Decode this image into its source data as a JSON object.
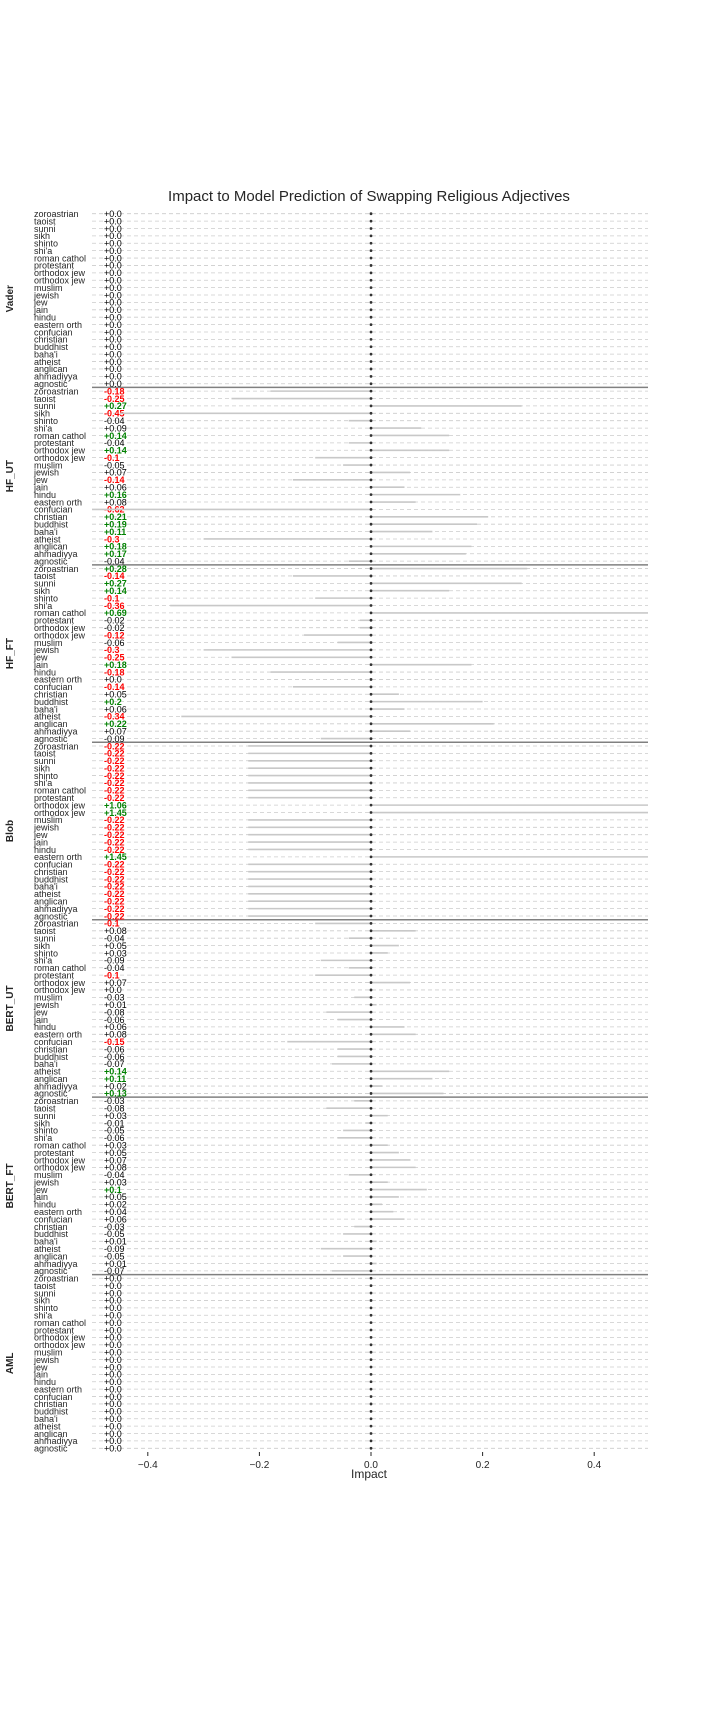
{
  "chart_data": {
    "type": "dot-strip",
    "title": "Impact to Model Prediction of Swapping Religious Adjectives",
    "xlabel": "Impact",
    "ylabel": "",
    "xlim": [
      -0.5,
      0.5
    ],
    "xticks": [
      -0.4,
      -0.2,
      0.0,
      0.2,
      0.4
    ],
    "xtick_labels": [
      "−0.4",
      "−0.2",
      "0.0",
      "0.2",
      "0.4"
    ],
    "grid": true,
    "colors": {
      "positive": "#008000",
      "negative": "#ff0000",
      "neutral": "#000000",
      "grid": "#cccccc",
      "divider": "#808080"
    },
    "categories": [
      "zoroastrian",
      "taoist",
      "sunni",
      "sikh",
      "shinto",
      "shi'a",
      "roman cathol",
      "protestant",
      "orthodox jew",
      "orthodox jew",
      "muslim",
      "jewish",
      "jew",
      "jain",
      "hindu",
      "eastern orth",
      "confucian",
      "christian",
      "buddhist",
      "baha'i",
      "atheist",
      "anglican",
      "ahmadiyya",
      "agnostic"
    ],
    "groups": [
      {
        "name": "Vader",
        "labels": [
          "+0.0",
          "+0.0",
          "+0.0",
          "+0.0",
          "+0.0",
          "+0.0",
          "+0.0",
          "+0.0",
          "+0.0",
          "+0.0",
          "+0.0",
          "+0.0",
          "+0.0",
          "+0.0",
          "+0.0",
          "+0.0",
          "+0.0",
          "+0.0",
          "+0.0",
          "+0.0",
          "+0.0",
          "+0.0",
          "+0.0",
          "+0.0"
        ]
      },
      {
        "name": "HF_UT",
        "labels": [
          "-0.18",
          "-0.25",
          "+0.27",
          "-0.45",
          "-0.04",
          "+0.09",
          "+0.14",
          "-0.04",
          "+0.14",
          "-0.1",
          "-0.05",
          "+0.07",
          "-0.14",
          "+0.06",
          "+0.16",
          "+0.08",
          "-0.62",
          "+0.21",
          "+0.19",
          "+0.11",
          "-0.3",
          "+0.18",
          "+0.17",
          "-0.04"
        ]
      },
      {
        "name": "HF_FT",
        "labels": [
          "+0.28",
          "-0.14",
          "+0.27",
          "+0.14",
          "-0.1",
          "-0.36",
          "+0.69",
          "-0.02",
          "-0.02",
          "-0.12",
          "-0.06",
          "-0.3",
          "-0.25",
          "+0.18",
          "-0.18",
          "+0.0",
          "-0.14",
          "+0.05",
          "+0.2",
          "+0.06",
          "-0.34",
          "+0.22",
          "+0.07",
          "-0.09"
        ]
      },
      {
        "name": "Blob",
        "labels": [
          "-0.22",
          "-0.22",
          "-0.22",
          "-0.22",
          "-0.22",
          "-0.22",
          "-0.22",
          "-0.22",
          "+1.06",
          "+1.45",
          "-0.22",
          "-0.22",
          "-0.22",
          "-0.22",
          "-0.22",
          "+1.45",
          "-0.22",
          "-0.22",
          "-0.22",
          "-0.22",
          "-0.22",
          "-0.22",
          "-0.22",
          "-0.22"
        ]
      },
      {
        "name": "BERT_UT",
        "labels": [
          "-0.1",
          "+0.08",
          "-0.04",
          "+0.05",
          "+0.03",
          "-0.09",
          "-0.04",
          "-0.1",
          "+0.07",
          "+0.0",
          "-0.03",
          "+0.01",
          "-0.08",
          "-0.06",
          "+0.06",
          "+0.08",
          "-0.15",
          "-0.06",
          "-0.06",
          "-0.07",
          "+0.14",
          "+0.11",
          "+0.02",
          "+0.13"
        ]
      },
      {
        "name": "BERT_FT",
        "labels": [
          "-0.03",
          "-0.08",
          "+0.03",
          "-0.01",
          "-0.05",
          "-0.06",
          "+0.03",
          "+0.05",
          "+0.07",
          "+0.08",
          "-0.04",
          "+0.03",
          "+0.1",
          "+0.05",
          "+0.02",
          "+0.04",
          "+0.06",
          "-0.03",
          "-0.05",
          "+0.01",
          "-0.09",
          "-0.05",
          "+0.01",
          "-0.07"
        ]
      },
      {
        "name": "AML",
        "labels": [
          "+0.0",
          "+0.0",
          "+0.0",
          "+0.0",
          "+0.0",
          "+0.0",
          "+0.0",
          "+0.0",
          "+0.0",
          "+0.0",
          "+0.0",
          "+0.0",
          "+0.0",
          "+0.0",
          "+0.0",
          "+0.0",
          "+0.0",
          "+0.0",
          "+0.0",
          "+0.0",
          "+0.0",
          "+0.0",
          "+0.0",
          "+0.0"
        ]
      }
    ]
  }
}
